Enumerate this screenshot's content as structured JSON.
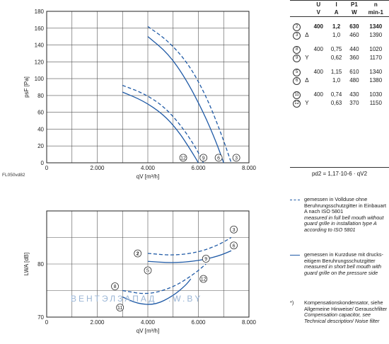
{
  "figure_id": "FL050vd82",
  "specs": {
    "headers": [
      "U",
      "I",
      "P1",
      "n"
    ],
    "units": [
      "V",
      "A",
      "W",
      "min-1"
    ],
    "groups": [
      [
        {
          "mark": "2",
          "conn": "",
          "U": "400",
          "I": "1,2",
          "P": "630",
          "n": "1340",
          "bold": true
        },
        {
          "mark": "3",
          "conn": "Δ",
          "U": "",
          "I": "1,0",
          "P": "460",
          "n": "1390",
          "bold": false
        }
      ],
      [
        {
          "mark": "8",
          "conn": "",
          "U": "400",
          "I": "0,75",
          "P": "440",
          "n": "1020",
          "bold": false
        },
        {
          "mark": "9",
          "conn": "Y",
          "U": "",
          "I": "0,62",
          "P": "360",
          "n": "1170",
          "bold": false
        }
      ],
      [
        {
          "mark": "5",
          "conn": "",
          "U": "400",
          "I": "1,15",
          "P": "610",
          "n": "1340",
          "bold": false
        },
        {
          "mark": "6",
          "conn": "Δ",
          "U": "",
          "I": "1,0",
          "P": "480",
          "n": "1380",
          "bold": false
        }
      ],
      [
        {
          "mark": "11",
          "conn": "",
          "U": "400",
          "I": "0,74",
          "P": "430",
          "n": "1030",
          "bold": false
        },
        {
          "mark": "12",
          "conn": "Y",
          "U": "",
          "I": "0,63",
          "P": "370",
          "n": "1150",
          "bold": false
        }
      ]
    ]
  },
  "formula": "pd2 = 1,17·10-6 · qV2",
  "legend": {
    "dashed": {
      "de": "gemessen in Vollduse ohne Beruhrungsschutzgitter in Einbauart A nach ISO 5801",
      "en": "measured in full bell mouth without guard grille in installation type A according to ISO 5801"
    },
    "solid": {
      "de": "gemessen in Kurzduse mit drucks­eitigem Beruhrungs­schutzgitter",
      "en": "measured in short bell mouth with guard grille on the pressure side"
    },
    "note": {
      "star": "*)",
      "de": "Kompensationskondensator, siehe Allgemeine Hinweise/ Gerauschfilter",
      "en": "Compensation capacitor, see Technical description/ Noise filter"
    }
  },
  "watermark": [
    "ВЕНТЭЛЗАПАД",
    ".W.BY"
  ],
  "colors": {
    "curve": "#1f5aa6",
    "watermark": "#9bb6d6"
  },
  "chart_data": [
    {
      "type": "line",
      "xlabel": "qV [m³/h]",
      "ylabel": "psF [Pa]",
      "xlim": [
        0,
        8000
      ],
      "ylim": [
        0,
        180
      ],
      "x_ticks": [
        "0",
        "2.000",
        "4.000",
        "6.000",
        "8.000"
      ],
      "y_ticks": [
        "0",
        "20",
        "40",
        "60",
        "80",
        "100",
        "120",
        "140",
        "160",
        "180"
      ],
      "grid": true,
      "series": [
        {
          "name": "2",
          "style": "dashed",
          "points": [
            [
              4000,
              162
            ],
            [
              4800,
              145
            ],
            [
              5600,
              118
            ],
            [
              6300,
              80
            ],
            [
              6900,
              35
            ],
            [
              7300,
              0
            ]
          ]
        },
        {
          "name": "5",
          "style": "solid",
          "points": [
            [
              4000,
              150
            ],
            [
              4800,
              130
            ],
            [
              5500,
              100
            ],
            [
              6200,
              60
            ],
            [
              6700,
              25
            ],
            [
              7000,
              0
            ]
          ]
        },
        {
          "name": "8",
          "style": "dashed",
          "points": [
            [
              3000,
              92
            ],
            [
              3800,
              83
            ],
            [
              4600,
              68
            ],
            [
              5300,
              45
            ],
            [
              5900,
              18
            ],
            [
              6200,
              0
            ]
          ]
        },
        {
          "name": "11",
          "style": "solid",
          "points": [
            [
              3000,
              84
            ],
            [
              3800,
              74
            ],
            [
              4600,
              58
            ],
            [
              5200,
              38
            ],
            [
              5700,
              15
            ],
            [
              6000,
              0
            ]
          ]
        }
      ],
      "end_markers": [
        {
          "label": "12",
          "x": 5400,
          "y": 6
        },
        {
          "label": "9",
          "x": 6200,
          "y": 6
        },
        {
          "label": "6",
          "x": 6800,
          "y": 6
        },
        {
          "label": "3",
          "x": 7500,
          "y": 6
        }
      ]
    },
    {
      "type": "line",
      "xlabel": "qV [m³/h]",
      "ylabel": "LWA [dB]",
      "xlim": [
        0,
        8000
      ],
      "ylim": [
        70,
        90
      ],
      "x_ticks": [
        "0",
        "2.000",
        "4.000",
        "6.000",
        "8.000"
      ],
      "y_ticks": [
        "70",
        "80"
      ],
      "grid": true,
      "series": [
        {
          "name": "2-3",
          "style": "dashed",
          "points": [
            [
              4000,
              82
            ],
            [
              5000,
              81.6
            ],
            [
              6000,
              82.2
            ],
            [
              6800,
              83.6
            ],
            [
              7300,
              85
            ]
          ]
        },
        {
          "name": "5-6",
          "style": "solid",
          "points": [
            [
              4000,
              80.5
            ],
            [
              5000,
              80.2
            ],
            [
              6000,
              80.6
            ],
            [
              6800,
              81.5
            ],
            [
              7300,
              82.5
            ]
          ]
        },
        {
          "name": "8-9",
          "style": "dashed",
          "points": [
            [
              3000,
              75
            ],
            [
              4000,
              74.2
            ],
            [
              5000,
              75.6
            ],
            [
              5800,
              78
            ],
            [
              6300,
              80
            ]
          ]
        },
        {
          "name": "11-12",
          "style": "solid",
          "points": [
            [
              3000,
              73.8
            ],
            [
              3600,
              72.5
            ],
            [
              4300,
              72.3
            ],
            [
              5000,
              74
            ],
            [
              5500,
              76
            ],
            [
              5700,
              77.2
            ]
          ]
        }
      ],
      "markers": [
        {
          "label": "2",
          "x": 3600,
          "y": 82
        },
        {
          "label": "3",
          "x": 7400,
          "y": 86.5
        },
        {
          "label": "5",
          "x": 4000,
          "y": 78.8
        },
        {
          "label": "6",
          "x": 7400,
          "y": 83.5
        },
        {
          "label": "8",
          "x": 2700,
          "y": 75.8
        },
        {
          "label": "9",
          "x": 6300,
          "y": 81
        },
        {
          "label": "11",
          "x": 2900,
          "y": 71.8
        },
        {
          "label": "12",
          "x": 6200,
          "y": 77.2
        }
      ]
    }
  ]
}
